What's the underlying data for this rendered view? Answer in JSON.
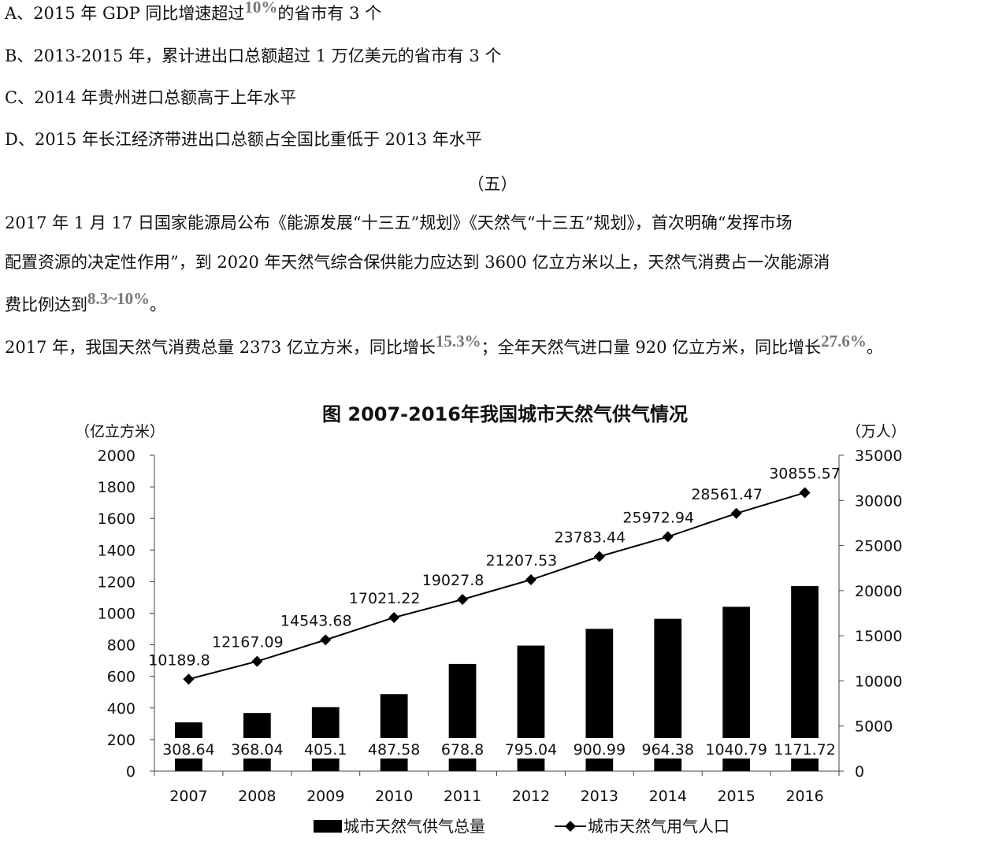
{
  "options": {
    "a": "A、2015 年 GDP 同比增速超过",
    "a_pct": "10%",
    "a_tail": "的省市有 3 个",
    "b": "B、2013-2015 年，累计进出口总额超过 1 万亿美元的省市有 3 个",
    "c": "C、2014 年贵州进口总额高于上年水平",
    "d": "D、2015 年长江经济带进出口总额占全国比重低于 2013 年水平"
  },
  "section_title": "（五）",
  "para1": {
    "line1": "2017 年 1 月 17 日国家能源局公布《能源发展“十三五”规划》《天然气“十三五”规划》，首次明确“发挥市场",
    "line2": "配置资源的决定性作用”，到 2020 年天然气综合保供能力应达到 3600 亿立方米以上，天然气消费占一次能源消",
    "line3_pre": "费比例达到",
    "line3_pct": "8.3~10%",
    "line3_post": "。"
  },
  "para2": {
    "pre": "2017 年，我国天然气消费总量 2373 亿立方米，同比增长",
    "pct1": "15.3%",
    "mid": "；全年天然气进口量 920 亿立方米，同比增长",
    "pct2": "27.6%",
    "post": "。"
  },
  "chart_data": {
    "type": "bar",
    "title": "图 2007-2016年我国城市天然气供气情况",
    "categories": [
      "2007",
      "2008",
      "2009",
      "2010",
      "2011",
      "2012",
      "2013",
      "2014",
      "2015",
      "2016"
    ],
    "series": [
      {
        "name": "城市天然气供气总量",
        "type": "bar",
        "axis": "left",
        "values": [
          308.64,
          368.04,
          405.1,
          487.58,
          678.8,
          795.04,
          900.99,
          964.38,
          1040.79,
          1171.72
        ]
      },
      {
        "name": "城市天然气用气人口",
        "type": "line",
        "axis": "right",
        "values": [
          10189.8,
          12167.09,
          14543.68,
          17021.22,
          19027.8,
          21207.53,
          23783.44,
          25972.94,
          28561.47,
          30855.57
        ]
      }
    ],
    "ylabel_left": "（亿立方米）",
    "ylabel_right": "（万人）",
    "ylim_left": [
      0,
      2000
    ],
    "ylim_right": [
      0,
      35000
    ],
    "yticks_left": [
      "0",
      "200",
      "400",
      "600",
      "800",
      "1000",
      "1200",
      "1400",
      "1600",
      "1800",
      "2000"
    ],
    "yticks_right": [
      "0",
      "5000",
      "10000",
      "15000",
      "20000",
      "25000",
      "30000",
      "35000"
    ],
    "grid": false,
    "legend_position": "bottom",
    "colors": {
      "bar": "#000000",
      "line": "#000000"
    }
  }
}
